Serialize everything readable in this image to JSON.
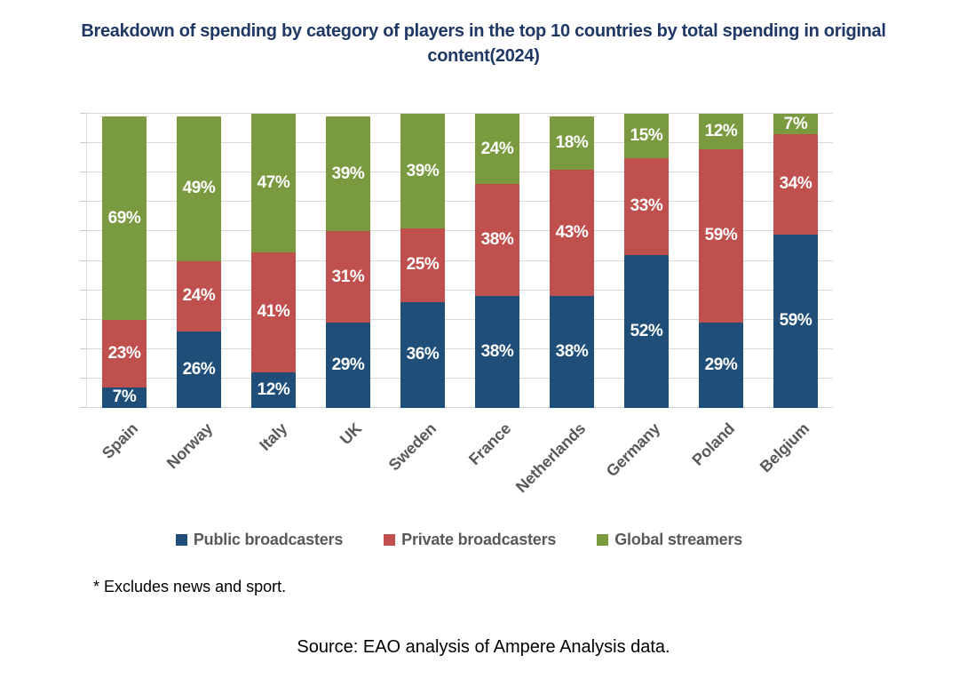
{
  "title": "Breakdown of spending by category of players in the top 10 countries by total spending in original content(2024)",
  "colors": {
    "title_text": "#1F3864",
    "axis_label_text": "#595959",
    "gridline": "#D9D9D9",
    "data_label_text": "#FFFFFF"
  },
  "chart_data": {
    "type": "bar",
    "stacked": true,
    "title": "Breakdown of spending by category of players in the top 10 countries by total spending in original content(2024)",
    "categories": [
      "Spain",
      "Norway",
      "Italy",
      "UK",
      "Sweden",
      "France",
      "Netherlands",
      "Germany",
      "Poland",
      "Belgium"
    ],
    "series": [
      {
        "name": "Public broadcasters",
        "color": "#1F4E79",
        "values": [
          7,
          26,
          12,
          29,
          36,
          38,
          38,
          52,
          29,
          59
        ]
      },
      {
        "name": "Private broadcasters",
        "color": "#C0504D",
        "values": [
          23,
          24,
          41,
          31,
          25,
          38,
          43,
          33,
          59,
          34
        ]
      },
      {
        "name": "Global streamers",
        "color": "#7A9A40",
        "values": [
          69,
          49,
          47,
          39,
          39,
          24,
          18,
          15,
          12,
          7
        ]
      }
    ],
    "value_suffix": "%",
    "ylim": [
      0,
      100
    ],
    "gridline_interval": 10,
    "grid": true,
    "y_axis_labels_shown": false,
    "legend_position": "bottom",
    "xlabel": "",
    "ylabel": ""
  },
  "footnote": "* Excludes news and sport.",
  "source": "Source: EAO analysis of Ampere Analysis data."
}
